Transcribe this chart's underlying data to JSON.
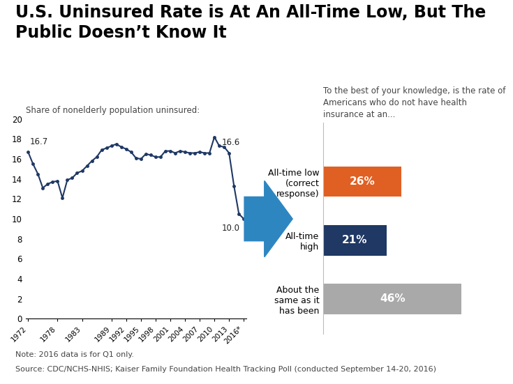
{
  "title": "U.S. Uninsured Rate is At An All-Time Low, But The\nPublic Doesn’t Know It",
  "line_subtitle": "Share of nonelderly population uninsured:",
  "bar_subtitle": "To the best of your knowledge, is the rate of\nAmericans who do not have health\ninsurance at an...",
  "line_color": "#1F3864",
  "line_data": {
    "years": [
      1972,
      1973,
      1974,
      1975,
      1976,
      1977,
      1978,
      1979,
      1980,
      1981,
      1982,
      1983,
      1984,
      1985,
      1986,
      1987,
      1988,
      1989,
      1990,
      1991,
      1992,
      1993,
      1994,
      1995,
      1996,
      1997,
      1998,
      1999,
      2000,
      2001,
      2002,
      2003,
      2004,
      2005,
      2006,
      2007,
      2008,
      2009,
      2010,
      2011,
      2012,
      2013,
      2014,
      2015,
      2016
    ],
    "values": [
      16.7,
      15.5,
      14.5,
      13.1,
      13.5,
      13.7,
      13.8,
      12.1,
      13.9,
      14.1,
      14.6,
      14.8,
      15.3,
      15.8,
      16.2,
      16.9,
      17.1,
      17.3,
      17.5,
      17.2,
      17.0,
      16.7,
      16.1,
      16.0,
      16.5,
      16.4,
      16.2,
      16.2,
      16.8,
      16.8,
      16.6,
      16.8,
      16.7,
      16.6,
      16.6,
      16.7,
      16.6,
      16.6,
      18.2,
      17.3,
      17.2,
      16.6,
      13.3,
      10.5,
      10.0
    ]
  },
  "xtick_labels": [
    "1972",
    "1978",
    "1983",
    "1989",
    "1992",
    "1995",
    "1998",
    "2001",
    "2004",
    "2007",
    "2010",
    "2013",
    "2016*"
  ],
  "xtick_positions": [
    0,
    6,
    11,
    17,
    20,
    23,
    26,
    29,
    32,
    35,
    38,
    41,
    44
  ],
  "ylim": [
    0,
    20
  ],
  "yticks": [
    0,
    2,
    4,
    6,
    8,
    10,
    12,
    14,
    16,
    18,
    20
  ],
  "bar_categories": [
    "All-time low\n(correct\nresponse)",
    "All-time\nhigh",
    "About the\nsame as it\nhas been"
  ],
  "bar_values": [
    26,
    21,
    46
  ],
  "bar_colors": [
    "#E06024",
    "#1F3864",
    "#A9A9A9"
  ],
  "bar_text_color": "#ffffff",
  "note": "Note: 2016 data is for Q1 only.",
  "source": "Source: CDC/NCHS-NHIS; Kaiser Family Foundation Health Tracking Poll (conducted September 14-20, 2016)",
  "arrow_color": "#2E86C1",
  "background_color": "#ffffff",
  "title_fontsize": 17,
  "note_fontsize": 8,
  "bar_label_fontsize": 11
}
